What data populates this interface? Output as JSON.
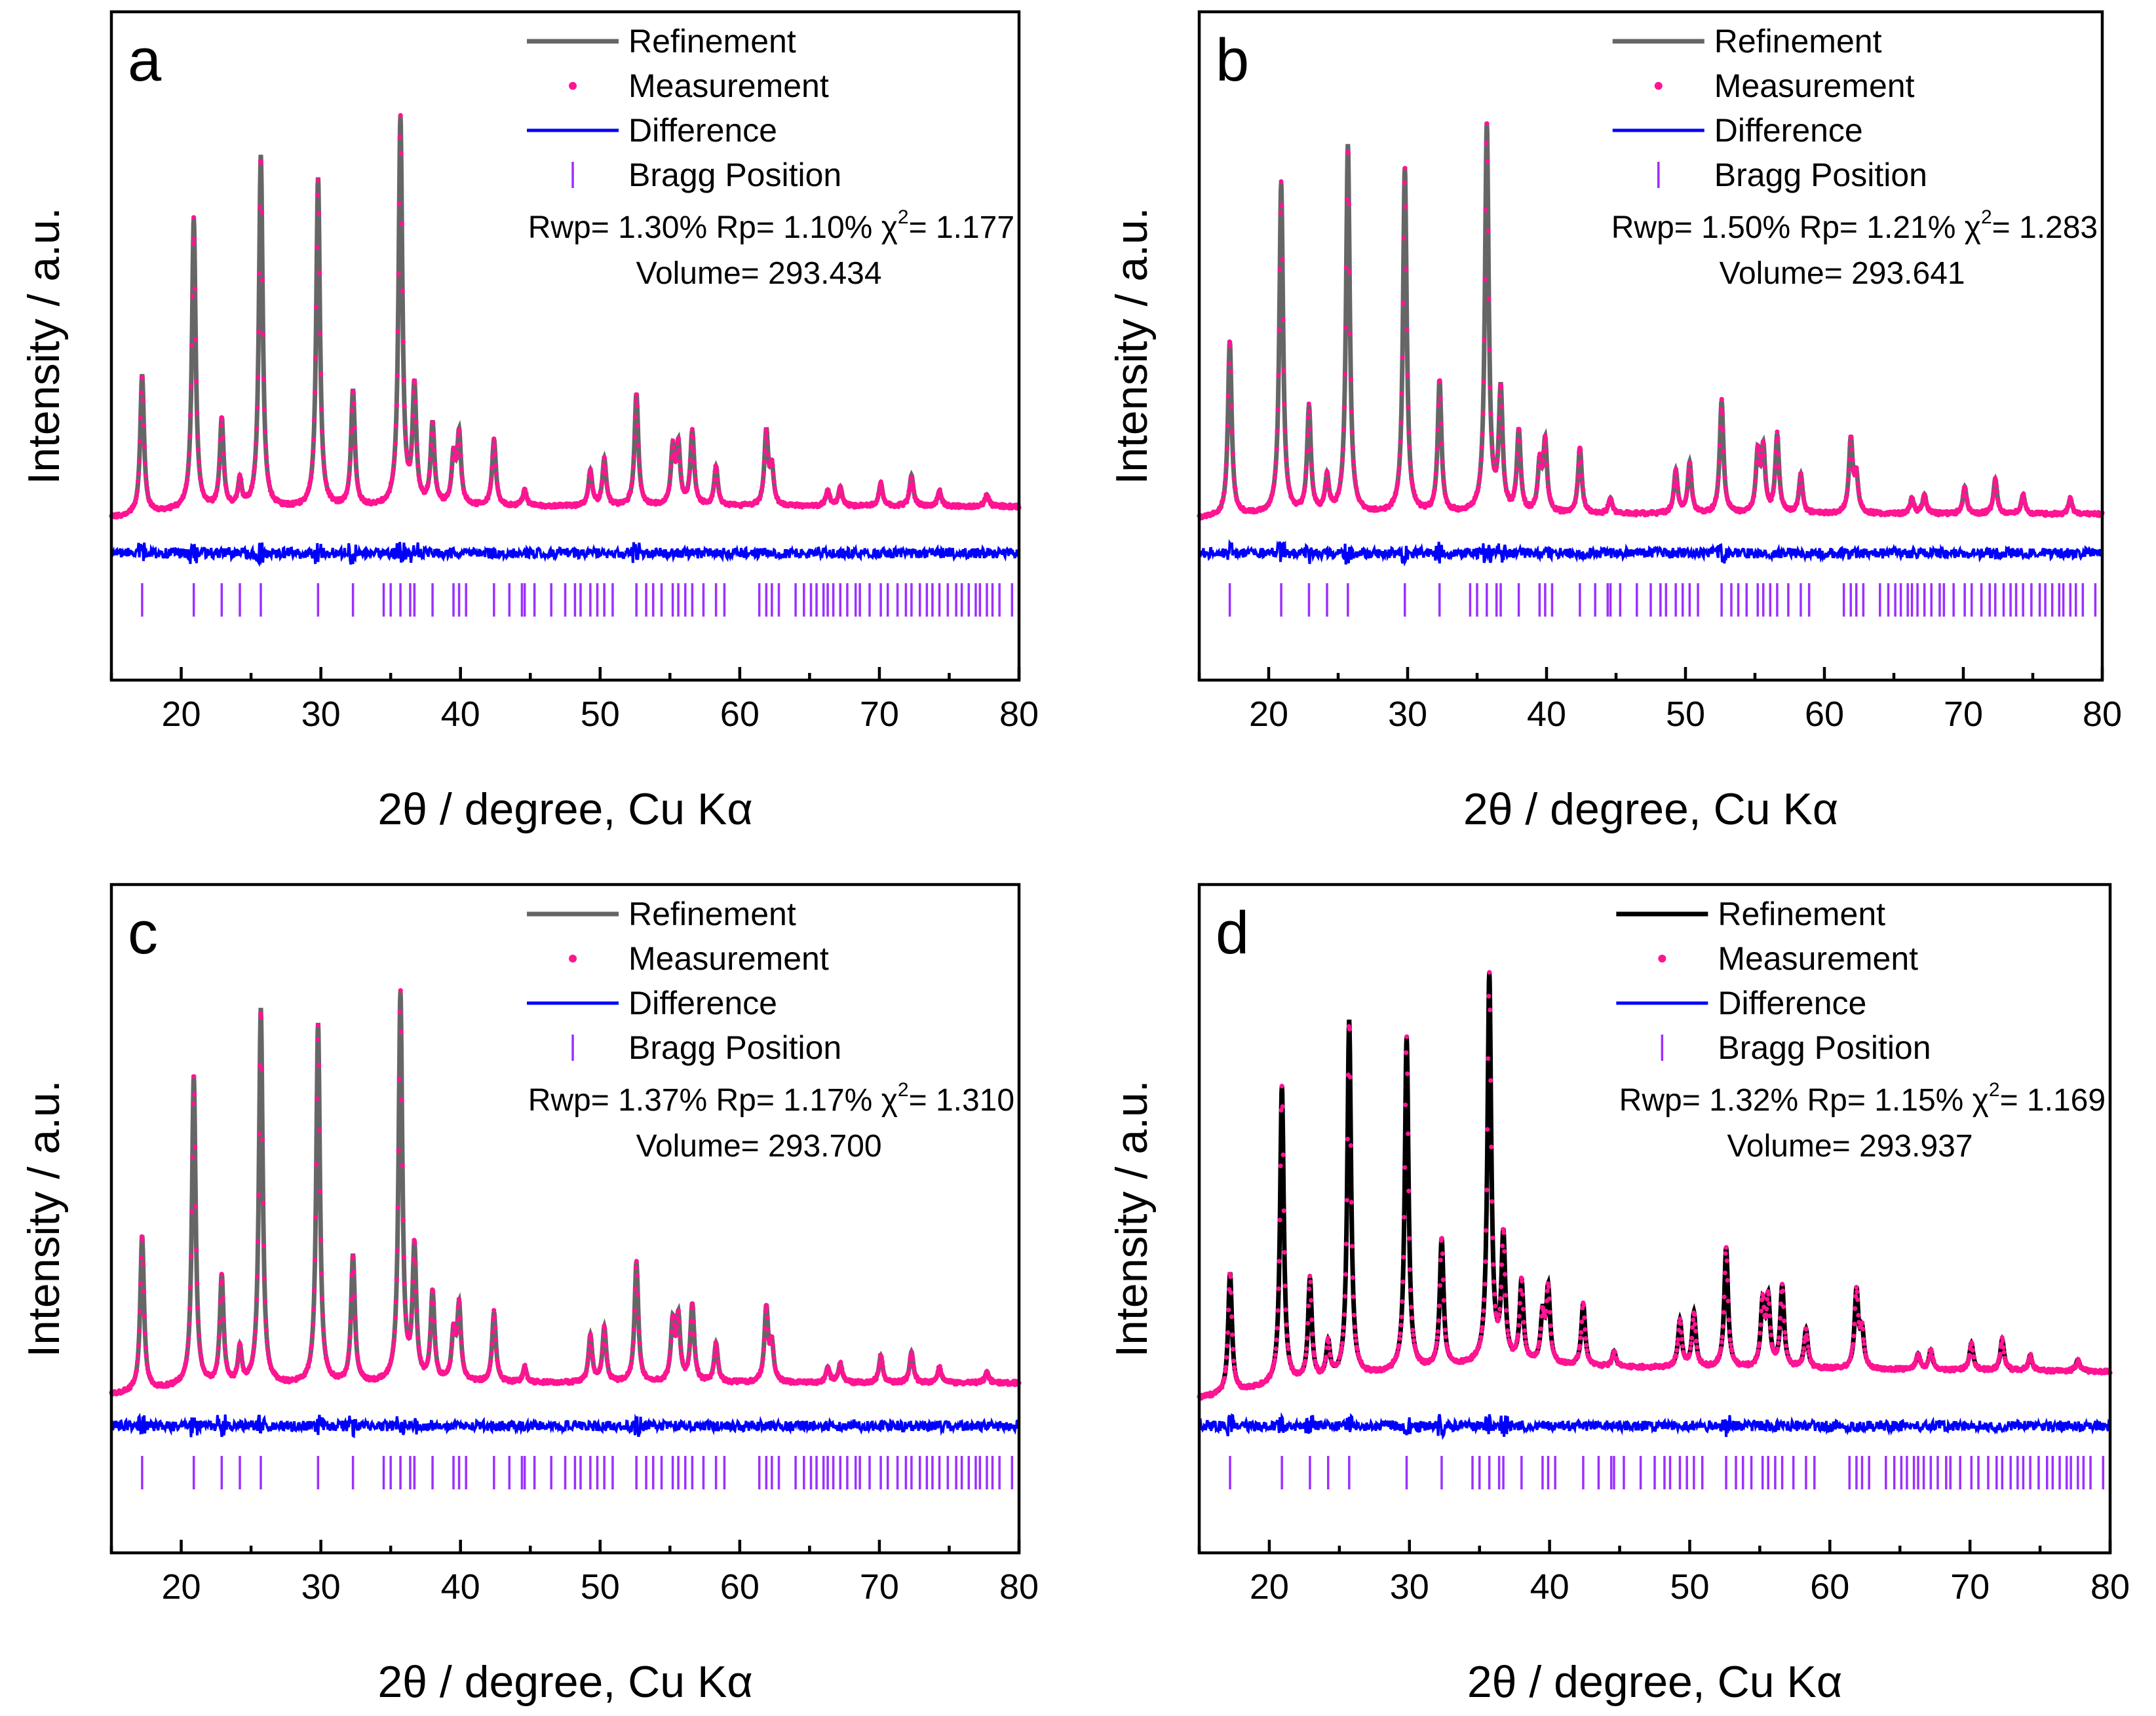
{
  "figure": {
    "colors": {
      "measurement": "#ff1493",
      "difference": "#0000ff",
      "bragg": "#9b30ff",
      "refinement_gray": "#666666",
      "refinement_black": "#000000"
    }
  },
  "chart_data": [
    {
      "panel": "a",
      "type": "line",
      "title": "",
      "xlabel": "2θ / degree, Cu Kα",
      "ylabel": "Intensity / a.u.",
      "xlim": [
        15,
        80
      ],
      "xticks": [
        "20",
        "30",
        "40",
        "50",
        "60",
        "70",
        "80"
      ],
      "legend": [
        "Refinement",
        "Measurement",
        "Difference",
        "Bragg Position"
      ],
      "refinement_color": "#666666",
      "stats": {
        "rwp": "Rwp= 1.30%",
        "rp": "Rp= 1.10%",
        "chi_label": "χ",
        "chi_sup": "2",
        "chi_val": "= 1.177",
        "volume": "Volume= 293.434"
      },
      "baseline": [
        [
          15,
          0.03
        ],
        [
          20,
          0.05
        ],
        [
          40,
          0.06
        ],
        [
          80,
          0.06
        ]
      ],
      "series": [
        {
          "name": "peaks",
          "values": [
            [
              17.2,
              0.36
            ],
            [
              20.9,
              0.75
            ],
            [
              22.9,
              0.23
            ],
            [
              24.2,
              0.07
            ],
            [
              25.7,
              0.91
            ],
            [
              29.8,
              0.85
            ],
            [
              32.3,
              0.3
            ],
            [
              35.7,
              1.0
            ],
            [
              36.7,
              0.3
            ],
            [
              38.0,
              0.21
            ],
            [
              39.5,
              0.12
            ],
            [
              39.9,
              0.18
            ],
            [
              42.4,
              0.17
            ],
            [
              44.6,
              0.04
            ],
            [
              49.3,
              0.09
            ],
            [
              50.3,
              0.12
            ],
            [
              52.6,
              0.29
            ],
            [
              55.2,
              0.14
            ],
            [
              55.6,
              0.15
            ],
            [
              56.6,
              0.19
            ],
            [
              58.3,
              0.1
            ],
            [
              61.9,
              0.19
            ],
            [
              62.3,
              0.09
            ],
            [
              66.3,
              0.04
            ],
            [
              67.2,
              0.05
            ],
            [
              70.1,
              0.06
            ],
            [
              72.3,
              0.08
            ],
            [
              74.3,
              0.04
            ],
            [
              77.7,
              0.03
            ]
          ]
        }
      ]
    },
    {
      "panel": "b",
      "type": "line",
      "title": "",
      "xlabel": "2θ / degree, Cu Kα",
      "ylabel": "Intensity / a.u.",
      "xlim": [
        15,
        80
      ],
      "xticks": [
        "20",
        "30",
        "40",
        "50",
        "60",
        "70",
        "80"
      ],
      "legend": [
        "Refinement",
        "Measurement",
        "Difference",
        "Bragg Position"
      ],
      "refinement_color": "#666666",
      "stats": {
        "rwp": "Rwp= 1.50%",
        "rp": "Rp= 1.21%",
        "chi_label": "χ",
        "chi_sup": "2",
        "chi_val": "= 1.283",
        "volume": "Volume= 293.641"
      },
      "baseline": [
        [
          15,
          0.03
        ],
        [
          20,
          0.04
        ],
        [
          40,
          0.04
        ],
        [
          80,
          0.04
        ]
      ],
      "series": [
        {
          "name": "peaks",
          "values": [
            [
              17.2,
              0.45
            ],
            [
              20.9,
              0.85
            ],
            [
              22.9,
              0.27
            ],
            [
              24.2,
              0.09
            ],
            [
              25.7,
              0.95
            ],
            [
              29.8,
              0.89
            ],
            [
              32.3,
              0.34
            ],
            [
              35.7,
              1.0
            ],
            [
              36.7,
              0.31
            ],
            [
              38.0,
              0.21
            ],
            [
              39.5,
              0.12
            ],
            [
              39.9,
              0.18
            ],
            [
              42.4,
              0.17
            ],
            [
              44.6,
              0.04
            ],
            [
              49.3,
              0.11
            ],
            [
              50.3,
              0.13
            ],
            [
              52.6,
              0.29
            ],
            [
              55.2,
              0.15
            ],
            [
              55.6,
              0.16
            ],
            [
              56.6,
              0.2
            ],
            [
              58.3,
              0.1
            ],
            [
              61.9,
              0.19
            ],
            [
              62.3,
              0.09
            ],
            [
              66.3,
              0.04
            ],
            [
              67.2,
              0.05
            ],
            [
              70.1,
              0.07
            ],
            [
              72.3,
              0.09
            ],
            [
              74.3,
              0.05
            ],
            [
              77.7,
              0.04
            ]
          ]
        }
      ]
    },
    {
      "panel": "c",
      "type": "line",
      "title": "",
      "xlabel": "2θ / degree, Cu Kα",
      "ylabel": "Intensity / a.u.",
      "xlim": [
        15,
        80
      ],
      "xticks": [
        "20",
        "30",
        "40",
        "50",
        "60",
        "70",
        "80"
      ],
      "legend": [
        "Refinement",
        "Measurement",
        "Difference",
        "Bragg Position"
      ],
      "refinement_color": "#666666",
      "stats": {
        "rwp": "Rwp= 1.37%",
        "rp": "Rp= 1.17%",
        "chi_label": "χ",
        "chi_sup": "2",
        "chi_val": "= 1.310",
        "volume": "Volume= 293.700"
      },
      "baseline": [
        [
          15,
          0.02
        ],
        [
          20,
          0.04
        ],
        [
          40,
          0.05
        ],
        [
          80,
          0.05
        ]
      ],
      "series": [
        {
          "name": "peaks",
          "values": [
            [
              17.2,
              0.4
            ],
            [
              20.9,
              0.8
            ],
            [
              22.9,
              0.28
            ],
            [
              24.2,
              0.09
            ],
            [
              25.7,
              0.97
            ],
            [
              29.8,
              0.93
            ],
            [
              32.3,
              0.33
            ],
            [
              35.7,
              1.0
            ],
            [
              36.7,
              0.34
            ],
            [
              38.0,
              0.23
            ],
            [
              39.5,
              0.12
            ],
            [
              39.9,
              0.19
            ],
            [
              42.4,
              0.18
            ],
            [
              44.6,
              0.04
            ],
            [
              49.3,
              0.12
            ],
            [
              50.3,
              0.14
            ],
            [
              52.6,
              0.31
            ],
            [
              55.2,
              0.15
            ],
            [
              55.6,
              0.16
            ],
            [
              56.6,
              0.2
            ],
            [
              58.3,
              0.1
            ],
            [
              61.9,
              0.19
            ],
            [
              62.3,
              0.09
            ],
            [
              66.3,
              0.04
            ],
            [
              67.2,
              0.05
            ],
            [
              70.1,
              0.07
            ],
            [
              72.3,
              0.08
            ],
            [
              74.3,
              0.04
            ],
            [
              77.7,
              0.03
            ]
          ]
        }
      ]
    },
    {
      "panel": "d",
      "type": "line",
      "title": "",
      "xlabel": "2θ / degree, Cu Kα",
      "ylabel": "Intensity / a.u.",
      "xlim": [
        15,
        80
      ],
      "xticks": [
        "20",
        "30",
        "40",
        "50",
        "60",
        "70",
        "80"
      ],
      "legend": [
        "Refinement",
        "Measurement",
        "Difference",
        "Bragg Position"
      ],
      "refinement_color": "#000000",
      "stats": {
        "rwp": "Rwp= 1.32%",
        "rp": "Rp= 1.15%",
        "chi_label": "χ",
        "chi_sup": "2",
        "chi_val": "= 1.169",
        "volume": "Volume= 293.937"
      },
      "baseline": [
        [
          15,
          0.01
        ],
        [
          20,
          0.04
        ],
        [
          30,
          0.08
        ],
        [
          36,
          0.1
        ],
        [
          45,
          0.09
        ],
        [
          80,
          0.08
        ]
      ],
      "series": [
        {
          "name": "peaks",
          "values": [
            [
              17.2,
              0.31
            ],
            [
              20.9,
              0.77
            ],
            [
              22.9,
              0.26
            ],
            [
              24.2,
              0.09
            ],
            [
              25.7,
              0.92
            ],
            [
              29.8,
              0.86
            ],
            [
              32.3,
              0.33
            ],
            [
              35.7,
              1.0
            ],
            [
              36.7,
              0.32
            ],
            [
              38.0,
              0.21
            ],
            [
              39.5,
              0.12
            ],
            [
              39.9,
              0.19
            ],
            [
              42.4,
              0.16
            ],
            [
              44.6,
              0.04
            ],
            [
              49.3,
              0.12
            ],
            [
              50.3,
              0.14
            ],
            [
              52.6,
              0.31
            ],
            [
              55.2,
              0.16
            ],
            [
              55.6,
              0.17
            ],
            [
              56.6,
              0.21
            ],
            [
              58.3,
              0.1
            ],
            [
              61.9,
              0.2
            ],
            [
              62.3,
              0.09
            ],
            [
              66.3,
              0.04
            ],
            [
              67.2,
              0.05
            ],
            [
              70.1,
              0.07
            ],
            [
              72.3,
              0.08
            ],
            [
              74.3,
              0.04
            ],
            [
              77.7,
              0.03
            ]
          ]
        }
      ]
    }
  ],
  "bragg_positions": [
    17.2,
    20.9,
    22.9,
    24.2,
    25.7,
    29.8,
    32.3,
    34.5,
    35.0,
    35.7,
    36.4,
    36.7,
    38.0,
    39.5,
    39.9,
    40.4,
    42.4,
    43.5,
    44.4,
    44.6,
    45.3,
    46.5,
    47.5,
    48.2,
    48.6,
    49.3,
    49.8,
    50.3,
    50.9,
    52.6,
    53.3,
    53.8,
    54.4,
    55.2,
    55.6,
    56.1,
    56.6,
    57.4,
    58.3,
    58.9,
    61.4,
    61.9,
    62.3,
    62.8,
    64.0,
    64.6,
    65.1,
    65.5,
    66.0,
    66.3,
    66.7,
    67.2,
    67.7,
    68.3,
    68.6,
    69.3,
    70.1,
    70.6,
    71.3,
    71.9,
    72.3,
    72.9,
    73.4,
    73.8,
    74.3,
    74.9,
    75.5,
    75.9,
    76.4,
    76.9,
    77.2,
    77.7,
    78.1,
    78.6,
    79.5,
    80.0
  ]
}
